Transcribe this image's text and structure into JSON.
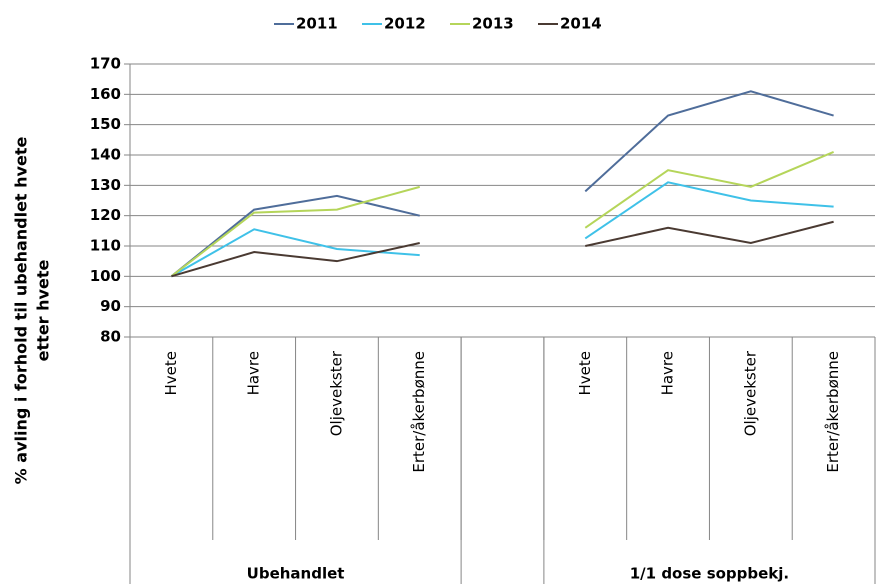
{
  "chart_data": {
    "type": "line",
    "ylabel": [
      "% avling i forhold til ubehandlet hvete",
      "etter hvete"
    ],
    "categories": [
      "Hvete",
      "Havre",
      "Oljevekster",
      "Erter/åkerbønne",
      null,
      "Hvete",
      "Havre",
      "Oljevekster",
      "Erter/åkerbønne"
    ],
    "category_groups": [
      "Ubehandlet",
      "1/1 dose soppbekj."
    ],
    "series": [
      {
        "name": "2011",
        "color": "#4f6d9a",
        "values": [
          100,
          122,
          126.5,
          120,
          null,
          128,
          153,
          161,
          153
        ]
      },
      {
        "name": "2012",
        "color": "#3fc1e8",
        "values": [
          100,
          115.5,
          109,
          107,
          null,
          112.5,
          131,
          125,
          123
        ]
      },
      {
        "name": "2013",
        "color": "#b5d55a",
        "values": [
          100,
          121,
          122,
          129.5,
          null,
          116,
          135,
          129.5,
          141
        ]
      },
      {
        "name": "2014",
        "color": "#4a3a32",
        "values": [
          100,
          108,
          105,
          111,
          null,
          110,
          116,
          111,
          118
        ]
      }
    ],
    "ylim": [
      80,
      170
    ],
    "yticks": [
      80,
      90,
      100,
      110,
      120,
      130,
      140,
      150,
      160,
      170
    ],
    "grid": true,
    "legend": "top"
  }
}
